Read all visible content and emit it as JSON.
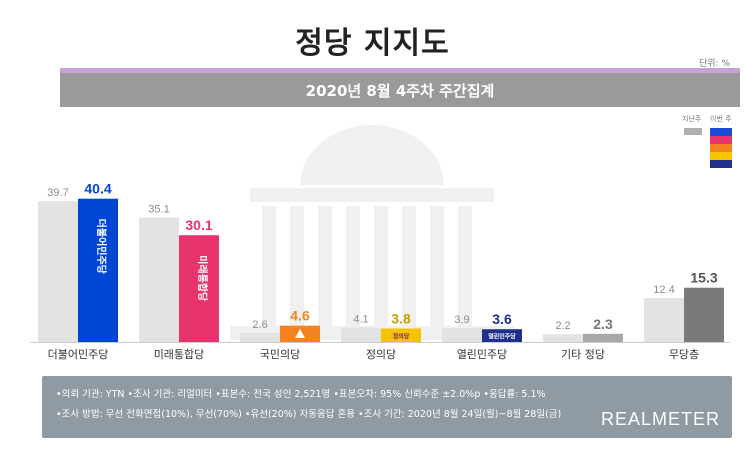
{
  "title": "정당 지지도",
  "unit_label": "단위: %",
  "banner": "2020년 8월 4주차 주간집계",
  "legend": {
    "previous": "지난주",
    "current": "이번 주",
    "current_colors": [
      "#1a4bd6",
      "#e8336d",
      "#f58220",
      "#f5c400",
      "#1e2f8c"
    ]
  },
  "colors": {
    "previous_bar": "#e3e3e3",
    "previous_label": "#8c8c8c",
    "accent": "#c9a1d8",
    "banner": "#9a9a9a",
    "footer": "#8f9aa3"
  },
  "chart_data": {
    "type": "bar",
    "categories": [
      "더불어민주당",
      "미래통합당",
      "국민의당",
      "정의당",
      "열린민주당",
      "기타 정당",
      "무당층"
    ],
    "series": [
      {
        "name": "지난주",
        "values": [
          39.7,
          35.1,
          2.6,
          4.1,
          3.9,
          2.2,
          12.4
        ]
      },
      {
        "name": "이번 주",
        "values": [
          40.4,
          30.1,
          4.6,
          3.8,
          3.6,
          2.3,
          15.3
        ]
      }
    ],
    "current_colors": [
      "#0046d5",
      "#e8336d",
      "#f58220",
      "#f5c400",
      "#1e2f8c",
      "#a8a8a8",
      "#7a7a7a"
    ],
    "value_label_colors": [
      "#0046d5",
      "#e8336d",
      "#f58220",
      "#c9a200",
      "#1e2f8c",
      "#777777",
      "#555555"
    ],
    "ylim": [
      0,
      42
    ],
    "bar_logos": [
      "더불어민주당",
      "미래통합당",
      "",
      "정의당",
      "열린민주당",
      "",
      ""
    ],
    "legend_position": "top-right"
  },
  "footer": {
    "line1": "•의뢰 기관: YTN •조사 기관: 리얼미터 •표본수: 전국 성인 2,521명 •표본오차: 95% 신뢰수준 ±2.0%p •응답률: 5.1%",
    "line2": "•조사 방법: 무선 전화면접(10%), 무선(70%) •유선(20%) 자동응답 혼용 •조사 기간: 2020년 8월 24일(월)~8월 28일(금)",
    "brand": "REALMETER"
  }
}
